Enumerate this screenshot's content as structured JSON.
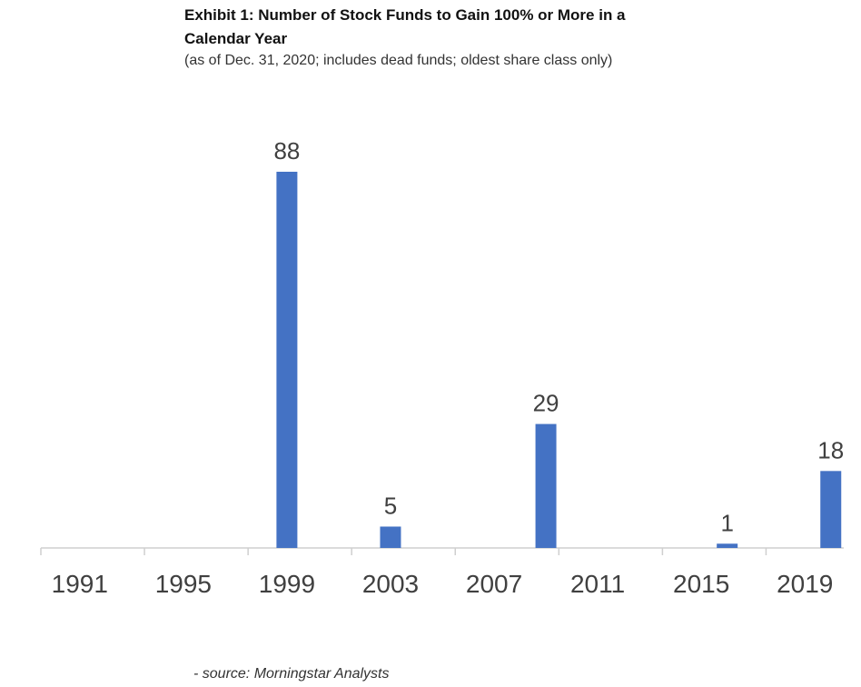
{
  "title": "Exhibit 1: Number of Stock Funds to Gain 100% or More in a Calendar Year",
  "subtitle": "(as of Dec. 31, 2020; includes dead funds; oldest share class only)",
  "source": "- source: Morningstar Analysts",
  "chart_data": {
    "type": "bar",
    "title": "Exhibit 1: Number of Stock Funds to Gain 100% or More in a Calendar Year",
    "subtitle": "(as of Dec. 31, 2020; includes dead funds; oldest share class only)",
    "xlabel": "",
    "ylabel": "",
    "x_tick_labels": [
      "1991",
      "1995",
      "1999",
      "2003",
      "2007",
      "2011",
      "2015",
      "2019"
    ],
    "bars": [
      {
        "year": 1999,
        "value": 88
      },
      {
        "year": 2003,
        "value": 5
      },
      {
        "year": 2009,
        "value": 29
      },
      {
        "year": 2016,
        "value": 1
      },
      {
        "year": 2020,
        "value": 18
      }
    ],
    "x_range": [
      1990,
      2020
    ],
    "ylim": [
      0,
      88
    ],
    "grid": false,
    "legend": "none",
    "bar_color": "#4472C4",
    "axis_color": "#cfcfcf",
    "label_color": "#404040"
  }
}
